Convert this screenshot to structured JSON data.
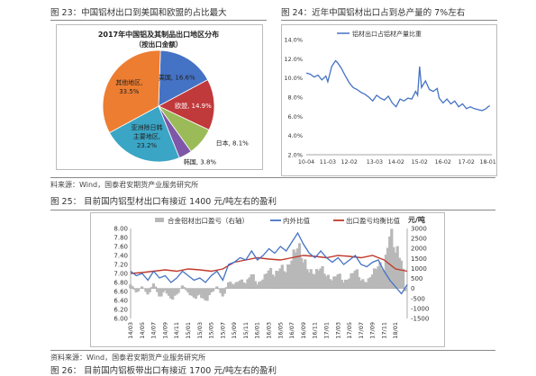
{
  "captions": {
    "fig23": "图 23：中国铝材出口到美国和欧盟的占比最大",
    "fig24": "图 24：近年中国铝材出口占到总产量的 7%左右",
    "source1": "料来源：Wind，国泰君安期货产业服务研究所",
    "fig25": "图 25：   目前国内铝型材出口有接近 1400 元/吨左右的盈利",
    "source2": "资料来源：Wind，国泰君安期货产业服务研究所",
    "fig26": "图 26：   目前国内铝板带出口有接近 1700 元/吨左右的盈利"
  },
  "chart_data": [
    {
      "type": "pie",
      "title": "2017年中国铝及其制品出口地区分布",
      "subtitle": "（按出口金额）",
      "slices": [
        {
          "label": "美国",
          "value": 16.6,
          "display": "16.6%",
          "color": "#4472c4"
        },
        {
          "label": "欧盟",
          "value": 14.9,
          "display": "14.9%",
          "color": "#c0393b"
        },
        {
          "label": "日本",
          "value": 8.1,
          "display": "8.1%",
          "color": "#9bbb59"
        },
        {
          "label": "韩国",
          "value": 3.8,
          "display": "3.8%",
          "color": "#7e57a8"
        },
        {
          "label": "亚洲除日韩主要地区",
          "value": 23.2,
          "display": "23.2%",
          "color": "#3aa5c5"
        },
        {
          "label": "其他地区",
          "value": 33.5,
          "display": "33.5%",
          "color": "#ed7d31"
        }
      ]
    },
    {
      "type": "line",
      "legend": "铝材出口占铝材产量比重",
      "x_ticks": [
        "10-04",
        "11-03",
        "12-02",
        "13-03",
        "14-02",
        "15-02",
        "16-02",
        "17-02",
        "18-01"
      ],
      "y_ticks": [
        "14.0%",
        "12.0%",
        "10.0%",
        "8.0%",
        "6.0%",
        "4.0%",
        "2.0%"
      ],
      "ylim": [
        2,
        14
      ],
      "color": "#4472c4",
      "series": [
        {
          "x": "2010-04",
          "y": 10.5
        },
        {
          "x": "2010-06",
          "y": 10.4
        },
        {
          "x": "2010-08",
          "y": 10.1
        },
        {
          "x": "2010-10",
          "y": 10.3
        },
        {
          "x": "2010-12",
          "y": 9.8
        },
        {
          "x": "2011-02",
          "y": 10.2
        },
        {
          "x": "2011-03",
          "y": 9.6
        },
        {
          "x": "2011-05",
          "y": 11.2
        },
        {
          "x": "2011-07",
          "y": 11.8
        },
        {
          "x": "2011-08",
          "y": 11.6
        },
        {
          "x": "2011-10",
          "y": 11.0
        },
        {
          "x": "2011-12",
          "y": 10.2
        },
        {
          "x": "2012-02",
          "y": 9.5
        },
        {
          "x": "2012-04",
          "y": 9.0
        },
        {
          "x": "2012-06",
          "y": 8.8
        },
        {
          "x": "2012-08",
          "y": 8.5
        },
        {
          "x": "2012-10",
          "y": 8.3
        },
        {
          "x": "2012-12",
          "y": 8.0
        },
        {
          "x": "2013-02",
          "y": 7.6
        },
        {
          "x": "2013-04",
          "y": 8.2
        },
        {
          "x": "2013-06",
          "y": 7.9
        },
        {
          "x": "2013-08",
          "y": 7.7
        },
        {
          "x": "2013-10",
          "y": 8.1
        },
        {
          "x": "2013-12",
          "y": 7.4
        },
        {
          "x": "2014-02",
          "y": 7.0
        },
        {
          "x": "2014-04",
          "y": 7.8
        },
        {
          "x": "2014-06",
          "y": 7.6
        },
        {
          "x": "2014-08",
          "y": 7.9
        },
        {
          "x": "2014-10",
          "y": 7.8
        },
        {
          "x": "2014-12",
          "y": 8.6
        },
        {
          "x": "2015-01",
          "y": 8.2
        },
        {
          "x": "2015-02",
          "y": 11.2
        },
        {
          "x": "2015-03",
          "y": 9.0
        },
        {
          "x": "2015-05",
          "y": 9.7
        },
        {
          "x": "2015-07",
          "y": 8.8
        },
        {
          "x": "2015-09",
          "y": 8.6
        },
        {
          "x": "2015-11",
          "y": 8.9
        },
        {
          "x": "2015-12",
          "y": 7.9
        },
        {
          "x": "2016-02",
          "y": 7.4
        },
        {
          "x": "2016-04",
          "y": 7.8
        },
        {
          "x": "2016-06",
          "y": 7.3
        },
        {
          "x": "2016-08",
          "y": 7.6
        },
        {
          "x": "2016-10",
          "y": 7.0
        },
        {
          "x": "2016-12",
          "y": 7.3
        },
        {
          "x": "2017-02",
          "y": 6.8
        },
        {
          "x": "2017-04",
          "y": 7.0
        },
        {
          "x": "2017-06",
          "y": 6.8
        },
        {
          "x": "2017-08",
          "y": 6.7
        },
        {
          "x": "2017-10",
          "y": 6.6
        },
        {
          "x": "2017-12",
          "y": 6.8
        },
        {
          "x": "2018-01",
          "y": 7.0
        },
        {
          "x": "2018-02",
          "y": 7.1
        }
      ]
    },
    {
      "type": "bar+line",
      "legend": [
        {
          "name": "合金铝材出口盈亏（右轴）",
          "color": "#b8b8b8"
        },
        {
          "name": "内外比值",
          "color": "#4472c4"
        },
        {
          "name": "出口盈亏均衡比值",
          "color": "#c0392b"
        }
      ],
      "right_unit": "元/吨",
      "x_ticks": [
        "14/03",
        "14/05",
        "14/07",
        "14/09",
        "14/11",
        "15/01",
        "15/03",
        "15/05",
        "15/07",
        "15/09",
        "15/11",
        "16/01",
        "16/03",
        "16/05",
        "16/07",
        "16/09",
        "16/11",
        "17/01",
        "17/03",
        "17/05",
        "17/07",
        "17/09",
        "17/11",
        "18/01"
      ],
      "y_left_ticks": [
        "8.00",
        "7.80",
        "7.60",
        "7.40",
        "7.20",
        "7.00",
        "6.80",
        "6.60",
        "6.40",
        "6.20",
        "6.00"
      ],
      "y_right_ticks": [
        "3000",
        "2500",
        "2000",
        "1500",
        "1000",
        "500",
        "0",
        "-500",
        "-1000",
        "-1500"
      ],
      "left_lim": [
        6.0,
        8.0
      ],
      "right_lim": [
        -1500,
        3000
      ],
      "ratio": [
        {
          "x": "2014-03",
          "y": 7.05
        },
        {
          "x": "2014-04",
          "y": 6.95
        },
        {
          "x": "2014-05",
          "y": 7.0
        },
        {
          "x": "2014-06",
          "y": 6.85
        },
        {
          "x": "2014-07",
          "y": 7.05
        },
        {
          "x": "2014-08",
          "y": 6.9
        },
        {
          "x": "2014-09",
          "y": 6.95
        },
        {
          "x": "2014-10",
          "y": 6.8
        },
        {
          "x": "2014-11",
          "y": 6.9
        },
        {
          "x": "2014-12",
          "y": 7.05
        },
        {
          "x": "2015-01",
          "y": 6.95
        },
        {
          "x": "2015-02",
          "y": 6.85
        },
        {
          "x": "2015-03",
          "y": 6.9
        },
        {
          "x": "2015-04",
          "y": 6.8
        },
        {
          "x": "2015-05",
          "y": 6.95
        },
        {
          "x": "2015-06",
          "y": 7.05
        },
        {
          "x": "2015-07",
          "y": 6.85
        },
        {
          "x": "2015-08",
          "y": 7.2
        },
        {
          "x": "2015-09",
          "y": 7.25
        },
        {
          "x": "2015-10",
          "y": 7.35
        },
        {
          "x": "2015-11",
          "y": 7.3
        },
        {
          "x": "2015-12",
          "y": 7.5
        },
        {
          "x": "2016-01",
          "y": 7.3
        },
        {
          "x": "2016-02",
          "y": 7.4
        },
        {
          "x": "2016-03",
          "y": 7.55
        },
        {
          "x": "2016-04",
          "y": 7.45
        },
        {
          "x": "2016-05",
          "y": 7.6
        },
        {
          "x": "2016-06",
          "y": 7.5
        },
        {
          "x": "2016-07",
          "y": 7.7
        },
        {
          "x": "2016-08",
          "y": 7.9
        },
        {
          "x": "2016-09",
          "y": 7.65
        },
        {
          "x": "2016-10",
          "y": 7.45
        },
        {
          "x": "2016-11",
          "y": 7.35
        },
        {
          "x": "2016-12",
          "y": 7.5
        },
        {
          "x": "2017-01",
          "y": 7.35
        },
        {
          "x": "2017-02",
          "y": 7.25
        },
        {
          "x": "2017-03",
          "y": 7.35
        },
        {
          "x": "2017-04",
          "y": 7.2
        },
        {
          "x": "2017-05",
          "y": 7.3
        },
        {
          "x": "2017-06",
          "y": 7.4
        },
        {
          "x": "2017-07",
          "y": 7.2
        },
        {
          "x": "2017-08",
          "y": 7.15
        },
        {
          "x": "2017-09",
          "y": 7.25
        },
        {
          "x": "2017-10",
          "y": 7.3
        },
        {
          "x": "2017-11",
          "y": 7.05
        },
        {
          "x": "2017-12",
          "y": 6.85
        },
        {
          "x": "2018-01",
          "y": 6.7
        },
        {
          "x": "2018-02",
          "y": 6.55
        },
        {
          "x": "2018-03",
          "y": 6.75
        }
      ],
      "breakeven": [
        {
          "x": "2014-03",
          "y": 7.0
        },
        {
          "x": "2014-05",
          "y": 7.02
        },
        {
          "x": "2014-07",
          "y": 7.05
        },
        {
          "x": "2014-09",
          "y": 7.08
        },
        {
          "x": "2014-11",
          "y": 7.05
        },
        {
          "x": "2015-01",
          "y": 7.1
        },
        {
          "x": "2015-03",
          "y": 7.08
        },
        {
          "x": "2015-05",
          "y": 7.05
        },
        {
          "x": "2015-07",
          "y": 7.1
        },
        {
          "x": "2015-09",
          "y": 7.25
        },
        {
          "x": "2015-11",
          "y": 7.3
        },
        {
          "x": "2016-01",
          "y": 7.35
        },
        {
          "x": "2016-03",
          "y": 7.32
        },
        {
          "x": "2016-05",
          "y": 7.3
        },
        {
          "x": "2016-07",
          "y": 7.35
        },
        {
          "x": "2016-09",
          "y": 7.4
        },
        {
          "x": "2016-11",
          "y": 7.38
        },
        {
          "x": "2017-01",
          "y": 7.35
        },
        {
          "x": "2017-03",
          "y": 7.4
        },
        {
          "x": "2017-05",
          "y": 7.38
        },
        {
          "x": "2017-07",
          "y": 7.35
        },
        {
          "x": "2017-09",
          "y": 7.4
        },
        {
          "x": "2017-11",
          "y": 7.3
        },
        {
          "x": "2018-01",
          "y": 7.1
        },
        {
          "x": "2018-03",
          "y": 7.05
        }
      ],
      "profit": [
        {
          "x": "2014-03",
          "y": 200
        },
        {
          "x": "2014-04",
          "y": -200
        },
        {
          "x": "2014-05",
          "y": 100
        },
        {
          "x": "2014-06",
          "y": -300
        },
        {
          "x": "2014-07",
          "y": 250
        },
        {
          "x": "2014-08",
          "y": -400
        },
        {
          "x": "2014-09",
          "y": -100
        },
        {
          "x": "2014-10",
          "y": -500
        },
        {
          "x": "2014-11",
          "y": -300
        },
        {
          "x": "2014-12",
          "y": 150
        },
        {
          "x": "2015-01",
          "y": -200
        },
        {
          "x": "2015-02",
          "y": -450
        },
        {
          "x": "2015-03",
          "y": -300
        },
        {
          "x": "2015-04",
          "y": -600
        },
        {
          "x": "2015-05",
          "y": -200
        },
        {
          "x": "2015-06",
          "y": 100
        },
        {
          "x": "2015-07",
          "y": -400
        },
        {
          "x": "2015-08",
          "y": 300
        },
        {
          "x": "2015-09",
          "y": 200
        },
        {
          "x": "2015-10",
          "y": 400
        },
        {
          "x": "2015-11",
          "y": 250
        },
        {
          "x": "2015-12",
          "y": 700
        },
        {
          "x": "2016-01",
          "y": 200
        },
        {
          "x": "2016-02",
          "y": 450
        },
        {
          "x": "2016-03",
          "y": 900
        },
        {
          "x": "2016-04",
          "y": 600
        },
        {
          "x": "2016-05",
          "y": 1000
        },
        {
          "x": "2016-06",
          "y": 800
        },
        {
          "x": "2016-07",
          "y": 1400
        },
        {
          "x": "2016-08",
          "y": 2000
        },
        {
          "x": "2016-09",
          "y": 1300
        },
        {
          "x": "2016-10",
          "y": 800
        },
        {
          "x": "2016-11",
          "y": 700
        },
        {
          "x": "2016-12",
          "y": 1000
        },
        {
          "x": "2017-01",
          "y": 600
        },
        {
          "x": "2017-02",
          "y": 400
        },
        {
          "x": "2017-03",
          "y": 700
        },
        {
          "x": "2017-04",
          "y": 300
        },
        {
          "x": "2017-05",
          "y": 500
        },
        {
          "x": "2017-06",
          "y": 900
        },
        {
          "x": "2017-07",
          "y": 400
        },
        {
          "x": "2017-08",
          "y": 300
        },
        {
          "x": "2017-09",
          "y": 700
        },
        {
          "x": "2017-10",
          "y": 1100
        },
        {
          "x": "2017-11",
          "y": 900
        },
        {
          "x": "2017-12",
          "y": 2600
        },
        {
          "x": "2018-01",
          "y": 1800
        },
        {
          "x": "2018-02",
          "y": 1400
        },
        {
          "x": "2018-03",
          "y": -900
        }
      ]
    }
  ]
}
